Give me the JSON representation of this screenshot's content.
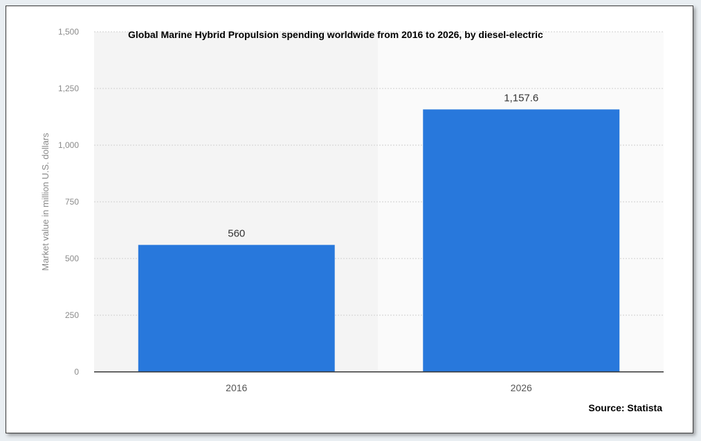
{
  "chart_data": {
    "type": "bar",
    "title": "Global Marine Hybrid Propulsion spending worldwide from 2016 to 2026, by diesel-electric",
    "ylabel": "Market value in million U.S. dollars",
    "xlabel": "",
    "categories": [
      "2016",
      "2026"
    ],
    "values": [
      560,
      1157.6
    ],
    "value_labels": [
      "560",
      "1,157.6"
    ],
    "ylim": [
      0,
      1500
    ],
    "yticks": [
      0,
      250,
      500,
      750,
      1000,
      1250,
      1500
    ],
    "ytick_labels": [
      "0",
      "250",
      "500",
      "750",
      "1,000",
      "1,250",
      "1,500"
    ],
    "grid": true,
    "source": "Source: Statista",
    "colors": {
      "bar": "#2878dc",
      "plot_left_bg": "#f4f4f4",
      "plot_right_bg": "#fafafa"
    }
  }
}
